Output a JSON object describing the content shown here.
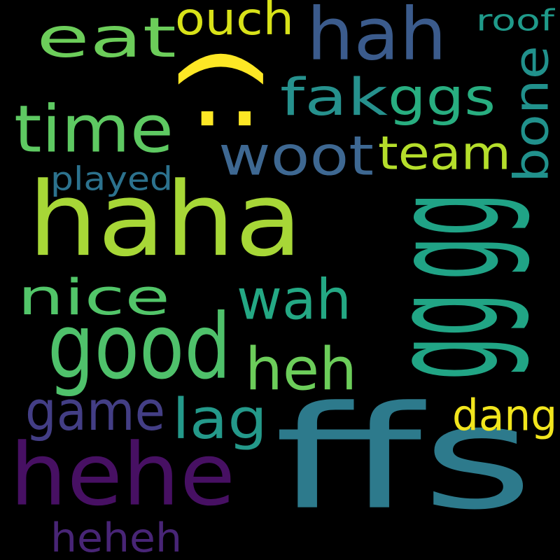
{
  "background": "#000000",
  "words": [
    {
      "text": "haha",
      "color": "#a7d737",
      "rotated": false
    },
    {
      "text": "ffs",
      "color": "#2d7a8c",
      "rotated": false
    },
    {
      "text": "gg",
      "color": "#20a386",
      "rotated": true
    },
    {
      "text": "gg",
      "color": "#21a585",
      "rotated": true
    },
    {
      "text": "hehe",
      "color": "#471063",
      "rotated": false
    },
    {
      "text": ":)",
      "color": "#fde725",
      "rotated": true
    },
    {
      "text": "hah",
      "color": "#3b5b8c",
      "rotated": false
    },
    {
      "text": "good",
      "color": "#4fc16b",
      "rotated": false
    },
    {
      "text": "time",
      "color": "#5ec962",
      "rotated": false
    },
    {
      "text": "eat",
      "color": "#6ccd5a",
      "rotated": false
    },
    {
      "text": "nice",
      "color": "#52c569",
      "rotated": false
    },
    {
      "text": "woot",
      "color": "#3e6892",
      "rotated": false
    },
    {
      "text": "wah",
      "color": "#24a884",
      "rotated": false
    },
    {
      "text": "heh",
      "color": "#6ccd5a",
      "rotated": false
    },
    {
      "text": "game",
      "color": "#433e85",
      "rotated": false
    },
    {
      "text": "fak",
      "color": "#26918d",
      "rotated": false
    },
    {
      "text": "ggs",
      "color": "#28ae80",
      "rotated": false
    },
    {
      "text": "team",
      "color": "#b5de2b",
      "rotated": false
    },
    {
      "text": "bone",
      "color": "#21918c",
      "rotated": true
    },
    {
      "text": "ouch",
      "color": "#d8e219",
      "rotated": false
    },
    {
      "text": "lag",
      "color": "#24998a",
      "rotated": false
    },
    {
      "text": "dang",
      "color": "#f1e51d",
      "rotated": false
    },
    {
      "text": "heheh",
      "color": "#482576",
      "rotated": false
    },
    {
      "text": "played",
      "color": "#2c728e",
      "rotated": false
    },
    {
      "text": "roof",
      "color": "#1f9a8a",
      "rotated": false
    }
  ]
}
